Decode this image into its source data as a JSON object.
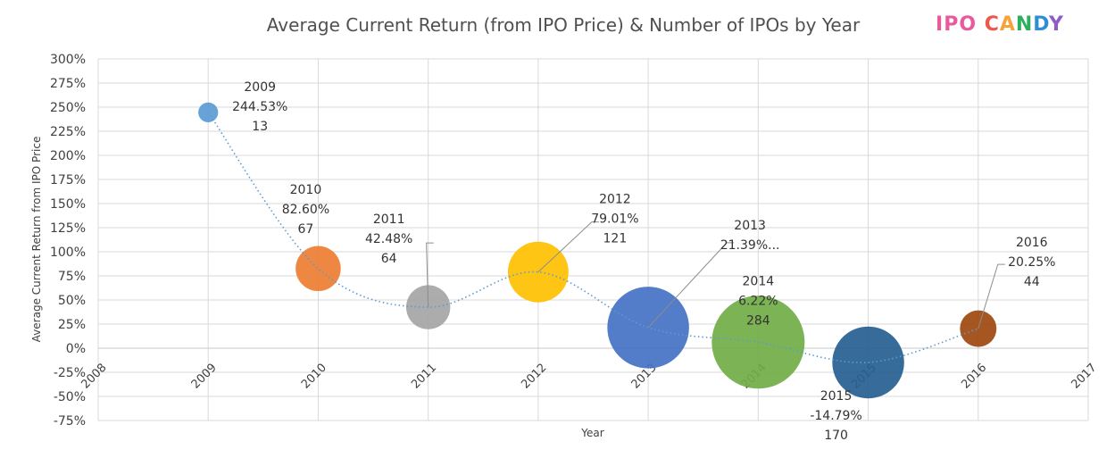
{
  "chart_data": {
    "type": "bubble",
    "title": "Average Current Return (from IPO Price) & Number of IPOs by Year",
    "xlabel": "Year",
    "ylabel": "Average Current Return from IPO Price",
    "xlim": [
      2008,
      2017
    ],
    "ylim": [
      -75,
      300
    ],
    "xticks": [
      "2008",
      "2009",
      "2010",
      "2011",
      "2012",
      "2013",
      "2014",
      "2015",
      "2016",
      "2017"
    ],
    "yticks": [
      "300%",
      "275%",
      "250%",
      "225%",
      "200%",
      "175%",
      "150%",
      "125%",
      "100%",
      "75%",
      "50%",
      "25%",
      "0%",
      "-25%",
      "-50%",
      "-75%"
    ],
    "grid": true,
    "trendline": "dotted",
    "points": [
      {
        "year": 2009,
        "return_pct": 244.53,
        "ipos": 13,
        "color": "#5B9BD5",
        "label": [
          "2009",
          "244.53%",
          "13"
        ]
      },
      {
        "year": 2010,
        "return_pct": 82.6,
        "ipos": 67,
        "color": "#ED7D31",
        "label": [
          "2010",
          "82.60%",
          "67"
        ]
      },
      {
        "year": 2011,
        "return_pct": 42.48,
        "ipos": 64,
        "color": "#A5A5A5",
        "label": [
          "2011",
          "42.48%",
          "64"
        ]
      },
      {
        "year": 2012,
        "return_pct": 79.01,
        "ipos": 121,
        "color": "#FFC000",
        "label": [
          "2012",
          "79.01%",
          "121"
        ]
      },
      {
        "year": 2013,
        "return_pct": 21.39,
        "ipos": 220,
        "color": "#4472C4",
        "label": [
          "2013",
          "21.39%..."
        ]
      },
      {
        "year": 2014,
        "return_pct": 6.22,
        "ipos": 284,
        "color": "#70AD47",
        "label": [
          "2014",
          "6.22%",
          "284"
        ]
      },
      {
        "year": 2015,
        "return_pct": -14.79,
        "ipos": 170,
        "color": "#255E91",
        "label": [
          "2015",
          "-14.79%",
          "170"
        ]
      },
      {
        "year": 2016,
        "return_pct": 20.25,
        "ipos": 44,
        "color": "#9E480E",
        "label": [
          "2016",
          "20.25%",
          "44"
        ]
      }
    ]
  },
  "logo": {
    "letters": [
      {
        "ch": "I",
        "color": "#E85A9A"
      },
      {
        "ch": "P",
        "color": "#E85A9A"
      },
      {
        "ch": "O",
        "color": "#E85A9A"
      },
      {
        "ch": " ",
        "color": "#ffffff"
      },
      {
        "ch": "C",
        "color": "#F0554A"
      },
      {
        "ch": "A",
        "color": "#F7A23A"
      },
      {
        "ch": "N",
        "color": "#2FAE5E"
      },
      {
        "ch": "D",
        "color": "#2E8FD6"
      },
      {
        "ch": "Y",
        "color": "#8E5BC9"
      }
    ]
  }
}
